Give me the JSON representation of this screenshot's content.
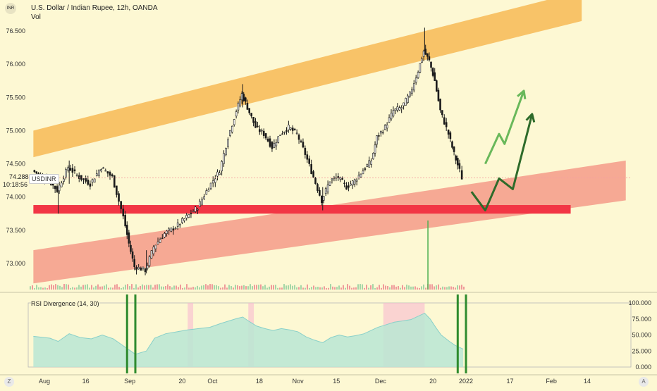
{
  "header": {
    "currency_badge": "INR",
    "title": "U.S. Dollar / Indian Rupee, 12h, OANDA",
    "volume_label": "Vol"
  },
  "price_tag": {
    "symbol": "USDINR",
    "price": "74.288",
    "countdown": "10:18:56"
  },
  "rsi": {
    "title": "RSI Divergence (14, 30)"
  },
  "corner_buttons": {
    "zoom": "Z",
    "auto": "A"
  },
  "chart_data": [
    {
      "type": "candlestick",
      "xlabel": "",
      "ylabel": "",
      "y_ticks": [
        "76.500",
        "76.000",
        "75.500",
        "75.000",
        "74.500",
        "74.000",
        "73.500",
        "73.000"
      ],
      "y_tick_values": [
        76.5,
        76.0,
        75.5,
        75.0,
        74.5,
        74.0,
        73.5,
        73.0
      ],
      "ylim": [
        72.5,
        77.0
      ],
      "x_ticks": [
        "Aug",
        "16",
        "Sep",
        "20",
        "Oct",
        "18",
        "Nov",
        "15",
        "Dec",
        "20",
        "2022",
        "17",
        "Feb",
        "14"
      ],
      "x_tick_dates": [
        "2021-08-01",
        "2021-08-16",
        "2021-09-01",
        "2021-09-20",
        "2021-10-01",
        "2021-10-18",
        "2021-11-01",
        "2021-11-15",
        "2021-12-01",
        "2021-12-20",
        "2022-01-01",
        "2022-01-17",
        "2022-02-01",
        "2022-02-14"
      ],
      "price_path": [
        [
          "2021-07-28",
          74.4
        ],
        [
          "2021-08-03",
          74.25
        ],
        [
          "2021-08-06",
          74.1
        ],
        [
          "2021-08-10",
          74.45
        ],
        [
          "2021-08-14",
          74.3
        ],
        [
          "2021-08-18",
          74.2
        ],
        [
          "2021-08-22",
          74.45
        ],
        [
          "2021-08-26",
          74.3
        ],
        [
          "2021-08-30",
          73.7
        ],
        [
          "2021-09-01",
          73.3
        ],
        [
          "2021-09-03",
          72.95
        ],
        [
          "2021-09-07",
          72.9
        ],
        [
          "2021-09-10",
          73.25
        ],
        [
          "2021-09-14",
          73.45
        ],
        [
          "2021-09-18",
          73.55
        ],
        [
          "2021-09-22",
          73.7
        ],
        [
          "2021-09-26",
          73.85
        ],
        [
          "2021-09-30",
          74.15
        ],
        [
          "2021-10-04",
          74.4
        ],
        [
          "2021-10-07",
          74.9
        ],
        [
          "2021-10-10",
          75.3
        ],
        [
          "2021-10-12",
          75.55
        ],
        [
          "2021-10-14",
          75.35
        ],
        [
          "2021-10-17",
          75.05
        ],
        [
          "2021-10-20",
          74.95
        ],
        [
          "2021-10-23",
          74.75
        ],
        [
          "2021-10-26",
          74.95
        ],
        [
          "2021-10-29",
          75.05
        ],
        [
          "2021-11-01",
          74.95
        ],
        [
          "2021-11-04",
          74.65
        ],
        [
          "2021-11-07",
          74.3
        ],
        [
          "2021-11-10",
          73.95
        ],
        [
          "2021-11-13",
          74.25
        ],
        [
          "2021-11-16",
          74.3
        ],
        [
          "2021-11-19",
          74.15
        ],
        [
          "2021-11-22",
          74.25
        ],
        [
          "2021-11-25",
          74.4
        ],
        [
          "2021-11-28",
          74.55
        ],
        [
          "2021-11-30",
          74.9
        ],
        [
          "2021-12-03",
          75.05
        ],
        [
          "2021-12-06",
          75.3
        ],
        [
          "2021-12-09",
          75.35
        ],
        [
          "2021-12-12",
          75.55
        ],
        [
          "2021-12-15",
          75.9
        ],
        [
          "2021-12-17",
          76.2
        ],
        [
          "2021-12-19",
          76.05
        ],
        [
          "2021-12-21",
          75.75
        ],
        [
          "2021-12-23",
          75.3
        ],
        [
          "2021-12-26",
          74.95
        ],
        [
          "2021-12-28",
          74.65
        ],
        [
          "2021-12-30",
          74.4
        ],
        [
          "2021-12-31",
          74.29
        ]
      ],
      "highs": [
        [
          "2021-08-10",
          74.55
        ],
        [
          "2021-10-12",
          75.7
        ],
        [
          "2021-12-17",
          76.55
        ]
      ],
      "lows": [
        [
          "2021-09-07",
          72.85
        ],
        [
          "2021-11-10",
          73.8
        ],
        [
          "2021-08-06",
          73.75
        ]
      ],
      "channel_upper": {
        "color": "#f7bc5c",
        "from": [
          "2021-07-28",
          74.6,
          75.0
        ],
        "to": [
          "2022-02-12",
          76.65,
          77.1
        ]
      },
      "channel_lower": {
        "color": "#f59b88",
        "from": [
          "2021-07-28",
          72.7,
          73.2
        ],
        "to": [
          "2022-02-28",
          73.95,
          74.55
        ]
      },
      "support_zone": {
        "color": "#f23645",
        "from": "2021-07-28",
        "to": "2022-02-08",
        "y": [
          73.75,
          73.88
        ]
      },
      "projection_light": {
        "color": "#69b85a",
        "points": [
          [
            "2022-01-08",
            74.5
          ],
          [
            "2022-01-13",
            74.95
          ],
          [
            "2022-01-15",
            74.8
          ],
          [
            "2022-01-22",
            75.6
          ]
        ]
      },
      "projection_dark": {
        "color": "#2e6b2a",
        "points": [
          [
            "2022-01-03",
            74.08
          ],
          [
            "2022-01-08",
            73.8
          ],
          [
            "2022-01-13",
            74.28
          ],
          [
            "2022-01-18",
            74.12
          ],
          [
            "2022-01-25",
            75.25
          ]
        ]
      },
      "volume_spike": {
        "date": "2021-12-18",
        "color": "#4caf50"
      },
      "last_price": 74.288
    },
    {
      "type": "area",
      "title": "RSI Divergence (14, 30)",
      "y_ticks": [
        "100.000",
        "75.000",
        "50.000",
        "25.000",
        "0.000"
      ],
      "y_tick_values": [
        100,
        75,
        50,
        25,
        0
      ],
      "ylim": [
        0,
        100
      ],
      "rsi_path": [
        [
          "2021-07-28",
          48
        ],
        [
          "2021-08-03",
          45
        ],
        [
          "2021-08-06",
          40
        ],
        [
          "2021-08-10",
          52
        ],
        [
          "2021-08-14",
          46
        ],
        [
          "2021-08-18",
          44
        ],
        [
          "2021-08-22",
          50
        ],
        [
          "2021-08-26",
          44
        ],
        [
          "2021-08-30",
          32
        ],
        [
          "2021-09-01",
          26
        ],
        [
          "2021-09-03",
          20
        ],
        [
          "2021-09-07",
          25
        ],
        [
          "2021-09-10",
          45
        ],
        [
          "2021-09-14",
          52
        ],
        [
          "2021-09-18",
          55
        ],
        [
          "2021-09-22",
          58
        ],
        [
          "2021-09-26",
          60
        ],
        [
          "2021-09-30",
          62
        ],
        [
          "2021-10-04",
          68
        ],
        [
          "2021-10-07",
          72
        ],
        [
          "2021-10-10",
          76
        ],
        [
          "2021-10-12",
          78
        ],
        [
          "2021-10-14",
          72
        ],
        [
          "2021-10-17",
          64
        ],
        [
          "2021-10-20",
          60
        ],
        [
          "2021-10-23",
          57
        ],
        [
          "2021-10-26",
          60
        ],
        [
          "2021-10-29",
          58
        ],
        [
          "2021-11-01",
          55
        ],
        [
          "2021-11-04",
          47
        ],
        [
          "2021-11-07",
          42
        ],
        [
          "2021-11-10",
          38
        ],
        [
          "2021-11-13",
          46
        ],
        [
          "2021-11-16",
          50
        ],
        [
          "2021-11-19",
          47
        ],
        [
          "2021-11-22",
          49
        ],
        [
          "2021-11-25",
          52
        ],
        [
          "2021-11-28",
          58
        ],
        [
          "2021-11-30",
          62
        ],
        [
          "2021-12-03",
          66
        ],
        [
          "2021-12-06",
          70
        ],
        [
          "2021-12-09",
          72
        ],
        [
          "2021-12-12",
          74
        ],
        [
          "2021-12-15",
          80
        ],
        [
          "2021-12-17",
          84
        ],
        [
          "2021-12-19",
          75
        ],
        [
          "2021-12-21",
          62
        ],
        [
          "2021-12-23",
          50
        ],
        [
          "2021-12-26",
          40
        ],
        [
          "2021-12-28",
          34
        ],
        [
          "2021-12-30",
          30
        ],
        [
          "2021-12-31",
          28
        ]
      ],
      "divergence_lines": {
        "color": "#2e8b2e",
        "dates": [
          "2021-08-31",
          "2021-09-03",
          "2021-12-29",
          "2022-01-01"
        ]
      },
      "shaded_ranges": [
        [
          "2021-09-22",
          "2021-09-24"
        ],
        [
          "2021-10-14",
          "2021-10-16"
        ],
        [
          "2021-12-02",
          "2021-12-17"
        ]
      ]
    }
  ]
}
